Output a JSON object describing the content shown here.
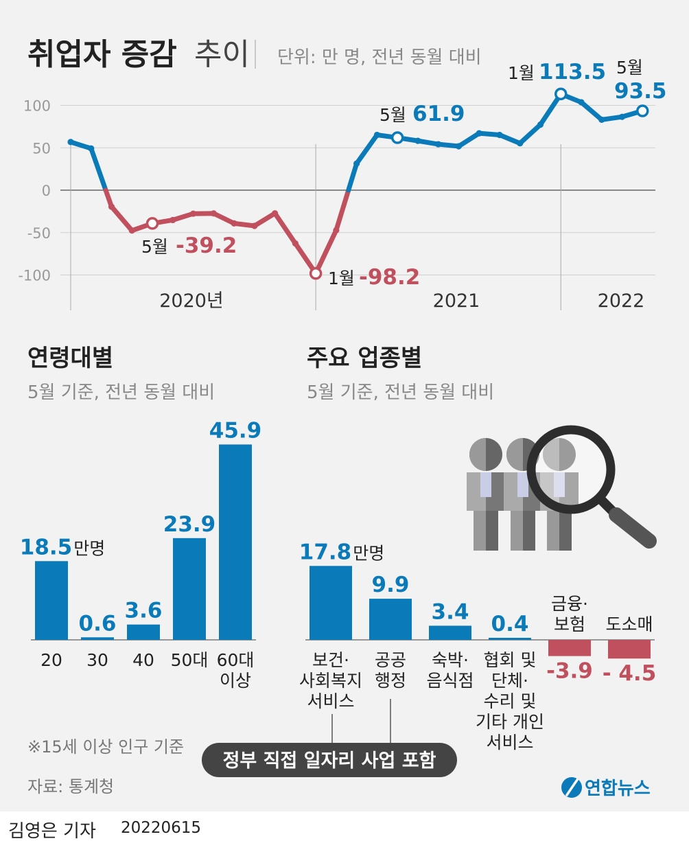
{
  "header": {
    "title": "취업자 증감",
    "title_light": "추이",
    "unit": "단위: 만 명, 전년 동월 대비"
  },
  "colors": {
    "positive": "#0a7ab8",
    "negative": "#c0505e",
    "axis": "#bdbdbd",
    "pill": "#444444"
  },
  "chart_data": [
    {
      "type": "line",
      "title": "취업자 증감 추이",
      "unit": "단위: 만 명, 전년 동월 대비",
      "ylim": [
        -100,
        100
      ],
      "yticks": [
        100,
        50,
        0,
        -50,
        -100
      ],
      "year_labels": [
        "2020년",
        "2021",
        "2022"
      ],
      "x": [
        "2020-01",
        "2020-02",
        "2020-03",
        "2020-04",
        "2020-05",
        "2020-06",
        "2020-07",
        "2020-08",
        "2020-09",
        "2020-10",
        "2020-11",
        "2020-12",
        "2021-01",
        "2021-02",
        "2021-03",
        "2021-04",
        "2021-05",
        "2021-06",
        "2021-07",
        "2021-08",
        "2021-09",
        "2021-10",
        "2021-11",
        "2021-12",
        "2022-01",
        "2022-02",
        "2022-03",
        "2022-04",
        "2022-05"
      ],
      "values": [
        56.8,
        49.2,
        -19.5,
        -47.6,
        -39.2,
        -35.2,
        -27.7,
        -27.4,
        -39.2,
        -42.1,
        -27.3,
        -62.8,
        -98.2,
        -47.3,
        31.4,
        65.2,
        61.9,
        58.2,
        54.2,
        51.8,
        67.1,
        65.2,
        55.3,
        77.3,
        113.5,
        103.7,
        83.1,
        86.5,
        93.5
      ],
      "annotations": [
        {
          "index": 4,
          "month": "5월",
          "value": "-39.2"
        },
        {
          "index": 12,
          "month": "1월",
          "value": "-98.2"
        },
        {
          "index": 16,
          "month": "5월",
          "value": "61.9"
        },
        {
          "index": 24,
          "month": "1월",
          "value": "113.5"
        },
        {
          "index": 28,
          "month": "5월",
          "value": "93.5"
        }
      ]
    },
    {
      "type": "bar",
      "title": "연령대별",
      "subtitle": "5월 기준, 전년 동월 대비",
      "categories": [
        "20",
        "30",
        "40",
        "50대",
        "60대\n이상"
      ],
      "values": [
        18.5,
        0.6,
        3.6,
        23.9,
        45.9
      ],
      "value_labels": [
        "18.5",
        "0.6",
        "3.6",
        "23.9",
        "45.9"
      ],
      "unit_suffix": "만명",
      "footnote": "※15세 이상 인구 기준"
    },
    {
      "type": "bar",
      "title": "주요 업종별",
      "subtitle": "5월 기준, 전년 동월 대비",
      "categories": [
        "보건·\n사회복지\n서비스",
        "공공\n행정",
        "숙박·\n음식점",
        "협회 및\n단체·\n수리 및\n기타 개인\n서비스",
        "금융·\n보험",
        "도소매"
      ],
      "values": [
        17.8,
        9.9,
        3.4,
        0.4,
        -3.9,
        -4.5
      ],
      "value_labels": [
        "17.8",
        "9.9",
        "3.4",
        "0.4",
        "-3.9",
        "- 4.5"
      ],
      "unit_suffix": "만명",
      "note": "정부 직접 일자리 사업 포함"
    }
  ],
  "footer": {
    "source": "자료: 통계청",
    "logo_text": "연합뉴스",
    "reporter": "김영은 기자",
    "date": "20220615"
  }
}
